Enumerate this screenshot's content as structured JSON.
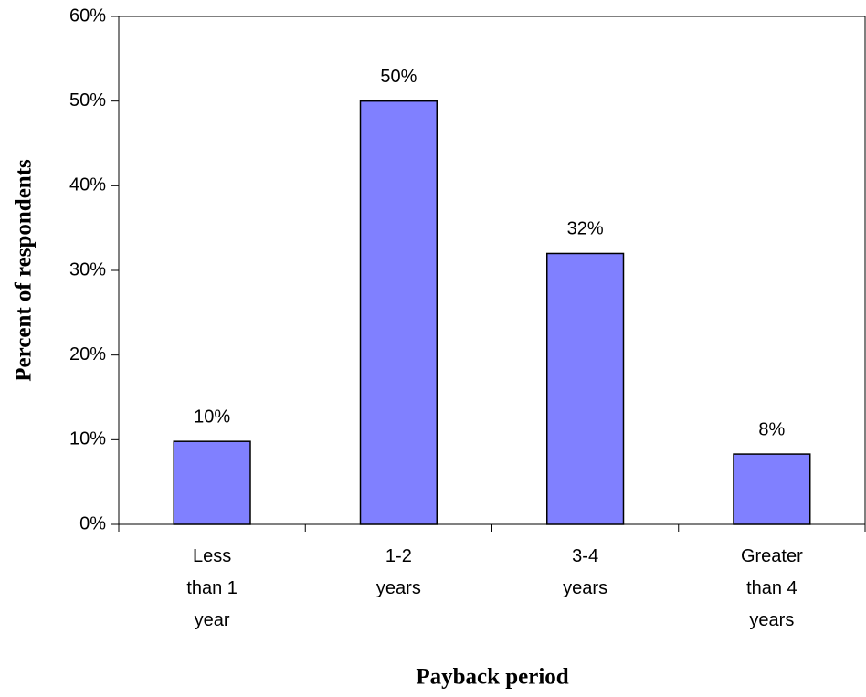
{
  "chart_data": {
    "type": "bar",
    "x_label": "Payback period",
    "y_label": "Percent of respondents",
    "categories": [
      "Less than 1 year",
      "1-2 years",
      "3-4 years",
      "Greater than 4 years"
    ],
    "values": [
      9.8,
      50,
      32,
      8.3
    ],
    "value_labels": [
      "10%",
      "50%",
      "32%",
      "8%"
    ],
    "color": "#8080ff",
    "ylim": [
      0,
      60
    ],
    "yticks": [
      {
        "value": 0,
        "label": "0%"
      },
      {
        "value": 10,
        "label": "10%"
      },
      {
        "value": 20,
        "label": "20%"
      },
      {
        "value": 30,
        "label": "30%"
      },
      {
        "value": 40,
        "label": "40%"
      },
      {
        "value": 50,
        "label": "50%"
      },
      {
        "value": 60,
        "label": "60%"
      }
    ],
    "grid": false
  }
}
